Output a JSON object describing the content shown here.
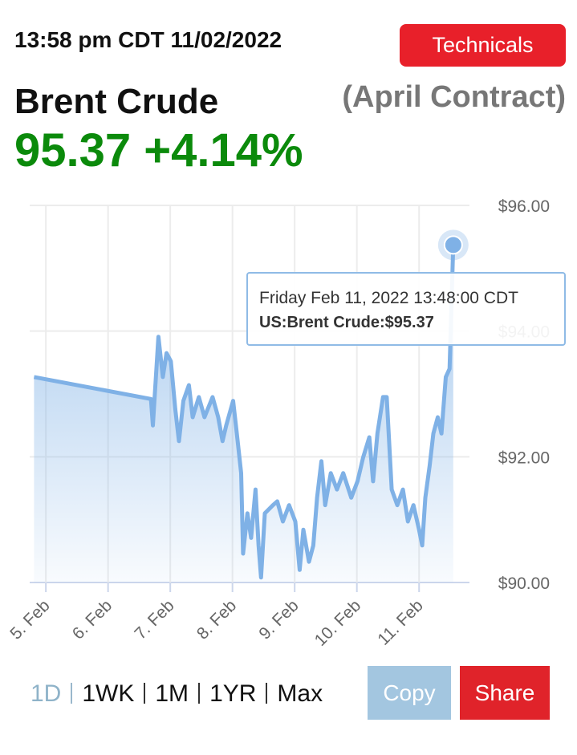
{
  "header": {
    "timestamp": "13:58 pm CDT 11/02/2022",
    "button": "Technicals",
    "name": "Brent Crude",
    "contract": "(April Contract)",
    "price": "95.37",
    "change": "+4.14%"
  },
  "chart_data": {
    "type": "line",
    "x": [
      4.81,
      6.69,
      6.72,
      6.81,
      6.88,
      6.94,
      7.01,
      7.08,
      7.14,
      7.21,
      7.3,
      7.36,
      7.46,
      7.55,
      7.68,
      7.77,
      7.84,
      7.9,
      8.01,
      8.07,
      8.14,
      8.17,
      8.24,
      8.3,
      8.37,
      8.42,
      8.46,
      8.52,
      8.65,
      8.72,
      8.81,
      8.91,
      9.01,
      9.08,
      9.14,
      9.23,
      9.3,
      9.36,
      9.43,
      9.49,
      9.58,
      9.68,
      9.78,
      9.91,
      10.01,
      10.1,
      10.2,
      10.26,
      10.33,
      10.42,
      10.48,
      10.56,
      10.65,
      10.74,
      10.82,
      10.91,
      11.0,
      11.05,
      11.1,
      11.17,
      11.23,
      11.3,
      11.36,
      11.43,
      11.49,
      11.55
    ],
    "series": [
      {
        "name": "US:Brent Crude",
        "color": "#7fb1e6",
        "values": [
          93.27,
          92.92,
          92.5,
          93.91,
          93.27,
          93.65,
          93.52,
          92.76,
          92.25,
          92.89,
          93.14,
          92.63,
          92.95,
          92.63,
          92.95,
          92.63,
          92.25,
          92.5,
          92.89,
          92.37,
          91.74,
          90.46,
          91.1,
          90.71,
          91.48,
          90.59,
          90.08,
          91.1,
          91.23,
          91.29,
          90.97,
          91.23,
          90.97,
          90.2,
          90.84,
          90.33,
          90.59,
          91.35,
          91.93,
          91.23,
          91.74,
          91.48,
          91.74,
          91.35,
          91.61,
          91.99,
          92.31,
          91.61,
          92.37,
          92.95,
          92.95,
          91.48,
          91.23,
          91.48,
          90.97,
          91.23,
          90.84,
          90.59,
          91.35,
          91.86,
          92.37,
          92.63,
          92.37,
          93.27,
          93.4,
          95.37
        ]
      }
    ],
    "xlim": [
      4.74,
      11.81
    ],
    "xticks": [
      {
        "value": 5,
        "label": "5. Feb"
      },
      {
        "value": 6,
        "label": "6. Feb"
      },
      {
        "value": 7,
        "label": "7. Feb"
      },
      {
        "value": 8,
        "label": "8. Feb"
      },
      {
        "value": 9,
        "label": "9. Feb"
      },
      {
        "value": 10,
        "label": "10. Feb"
      },
      {
        "value": 11,
        "label": "11. Feb"
      }
    ],
    "ylim": [
      90,
      96
    ],
    "yticks": [
      {
        "value": 90,
        "label": "$90.00"
      },
      {
        "value": 92,
        "label": "$92.00"
      },
      {
        "value": 94,
        "label": "$94.00"
      },
      {
        "value": 96,
        "label": "$96.00"
      }
    ],
    "grid": true,
    "tooltip": {
      "title": "Friday Feb 11, 2022 13:48:00 CDT",
      "text": "US:Brent Crude:$95.37"
    }
  },
  "footer": {
    "ranges": [
      "1D",
      "1WK",
      "1M",
      "1YR",
      "Max"
    ],
    "copy": "Copy",
    "share": "Share"
  }
}
